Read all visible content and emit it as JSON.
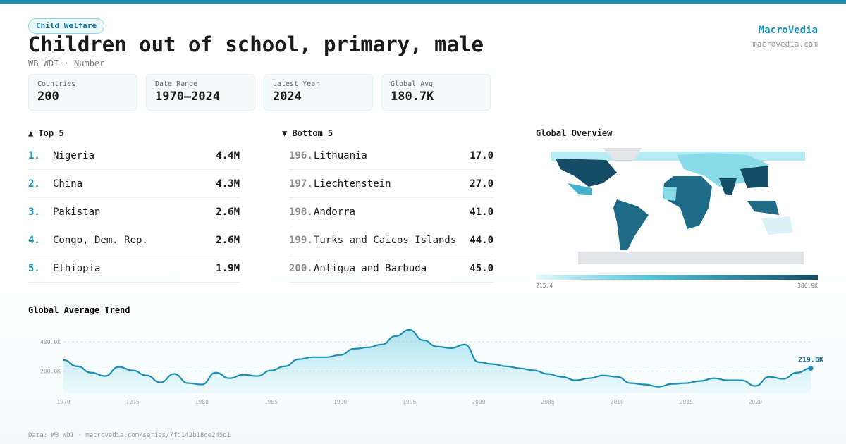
{
  "header": {
    "badge": "Child Welfare",
    "title": "Children out of school, primary, male",
    "subtitle": "WB WDI · Number",
    "brand": "MacroVedia",
    "brand_url": "macrovedia.com"
  },
  "stats": [
    {
      "label": "Countries",
      "value": "200"
    },
    {
      "label": "Date Range",
      "value": "1970–2024"
    },
    {
      "label": "Latest Year",
      "value": "2024"
    },
    {
      "label": "Global Avg",
      "value": "180.7K"
    }
  ],
  "top": {
    "title": "▲ Top 5",
    "rows": [
      {
        "rank": "1.",
        "name": "Nigeria",
        "value": "4.4M"
      },
      {
        "rank": "2.",
        "name": "China",
        "value": "4.3M"
      },
      {
        "rank": "3.",
        "name": "Pakistan",
        "value": "2.6M"
      },
      {
        "rank": "4.",
        "name": "Congo, Dem. Rep.",
        "value": "2.6M"
      },
      {
        "rank": "5.",
        "name": "Ethiopia",
        "value": "1.9M"
      }
    ]
  },
  "bottom": {
    "title": "▼ Bottom 5",
    "rows": [
      {
        "rank": "196.",
        "name": "Lithuania",
        "value": "17.0"
      },
      {
        "rank": "197.",
        "name": "Liechtenstein",
        "value": "27.0"
      },
      {
        "rank": "198.",
        "name": "Andorra",
        "value": "41.0"
      },
      {
        "rank": "199.",
        "name": "Turks and Caicos Islands",
        "value": "44.0"
      },
      {
        "rank": "200.",
        "name": "Antigua and Barbuda",
        "value": "45.0"
      }
    ]
  },
  "map": {
    "title": "Global Overview",
    "legend_min": "215.4",
    "legend_max": "386.9K"
  },
  "chart_data": {
    "type": "line",
    "title": "Global Average Trend",
    "color": "#1a8fb3",
    "x": [
      1970,
      1971,
      1972,
      1973,
      1974,
      1975,
      1976,
      1977,
      1978,
      1979,
      1980,
      1981,
      1982,
      1983,
      1984,
      1985,
      1986,
      1987,
      1988,
      1989,
      1990,
      1991,
      1992,
      1993,
      1994,
      1995,
      1996,
      1997,
      1998,
      1999,
      2000,
      2001,
      2002,
      2003,
      2004,
      2005,
      2006,
      2007,
      2008,
      2009,
      2010,
      2011,
      2012,
      2013,
      2014,
      2015,
      2016,
      2017,
      2018,
      2019,
      2020,
      2021,
      2022,
      2023,
      2024
    ],
    "values": [
      276000,
      233000,
      190000,
      167000,
      229000,
      205000,
      171000,
      124000,
      181000,
      119000,
      110000,
      190000,
      152000,
      176000,
      167000,
      205000,
      233000,
      281000,
      295000,
      295000,
      310000,
      352000,
      362000,
      381000,
      438000,
      481000,
      410000,
      367000,
      357000,
      381000,
      262000,
      248000,
      233000,
      219000,
      205000,
      181000,
      162000,
      138000,
      152000,
      171000,
      162000,
      119000,
      110000,
      95000,
      114000,
      119000,
      133000,
      152000,
      138000,
      138000,
      100000,
      162000,
      148000,
      190000,
      219600
    ],
    "value_labels": [
      null,
      null,
      null,
      null,
      null,
      null,
      null,
      null,
      null,
      null,
      null,
      null,
      null,
      null,
      null,
      null,
      null,
      null,
      null,
      null,
      null,
      null,
      null,
      null,
      null,
      null,
      null,
      null,
      null,
      null,
      null,
      null,
      null,
      null,
      null,
      null,
      null,
      null,
      null,
      null,
      null,
      null,
      null,
      null,
      null,
      null,
      null,
      null,
      null,
      null,
      null,
      null,
      null,
      null,
      "219.6K"
    ],
    "xlim": [
      1970,
      2024
    ],
    "xticks": [
      1970,
      1975,
      1980,
      1985,
      1990,
      1995,
      2000,
      2005,
      2010,
      2015,
      2020
    ],
    "ylim": [
      50000,
      500000
    ],
    "yticks": [
      {
        "value": 200000,
        "label": "200.0K"
      },
      {
        "value": 400000,
        "label": "400.0K"
      }
    ],
    "grid": true
  },
  "footer": "Data: WB WDI · macrovedia.com/series/7fd142b18ce245d1"
}
